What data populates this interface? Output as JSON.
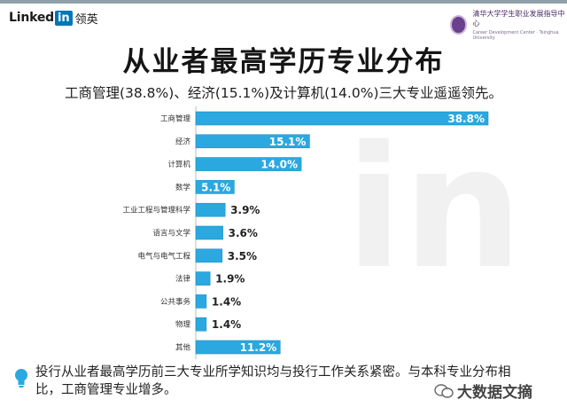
{
  "header": {
    "brand": "Linked",
    "brand_in": "in",
    "brand_cn": "领英",
    "partner_cn": "清华大学学生职业发展指导中心",
    "partner_en": "Career Development Center · Tsinghua University"
  },
  "title": "从业者最高学历专业分布",
  "subtitle": "工商管理(38.8%)、经济(15.1%)及计算机(14.0%)三大专业遥遥领先。",
  "footnote": "投行从业者最高学历前三大专业所学知识均与投行工作关系紧密。与本科专业分布相比，工商管理专业增多。",
  "watermark": "大数据文摘",
  "colors": {
    "bar": "#2ba8e0",
    "bar_border": "#1b8fc4",
    "value_in_bar": "#ffffff",
    "value_outside": "#222222",
    "watermark_bg": "#e9e9e9"
  },
  "chart_data": {
    "type": "bar",
    "orientation": "horizontal",
    "title": "从业者最高学历专业分布",
    "categories": [
      "工商管理",
      "经济",
      "计算机",
      "数学",
      "工业工程与管理科学",
      "语言与文学",
      "电气与电气工程",
      "法律",
      "公共事务",
      "物理",
      "其他"
    ],
    "values": [
      38.8,
      15.1,
      14.0,
      5.1,
      3.9,
      3.6,
      3.5,
      1.9,
      1.4,
      1.4,
      11.2
    ],
    "labels": [
      "38.8%",
      "15.1%",
      "14.0%",
      "5.1%",
      "3.9%",
      "3.6%",
      "3.5%",
      "1.9%",
      "1.4%",
      "1.4%",
      "11.2%"
    ],
    "unit": "%",
    "xlim": [
      0,
      38.8
    ],
    "grid": false,
    "legend": "none"
  }
}
